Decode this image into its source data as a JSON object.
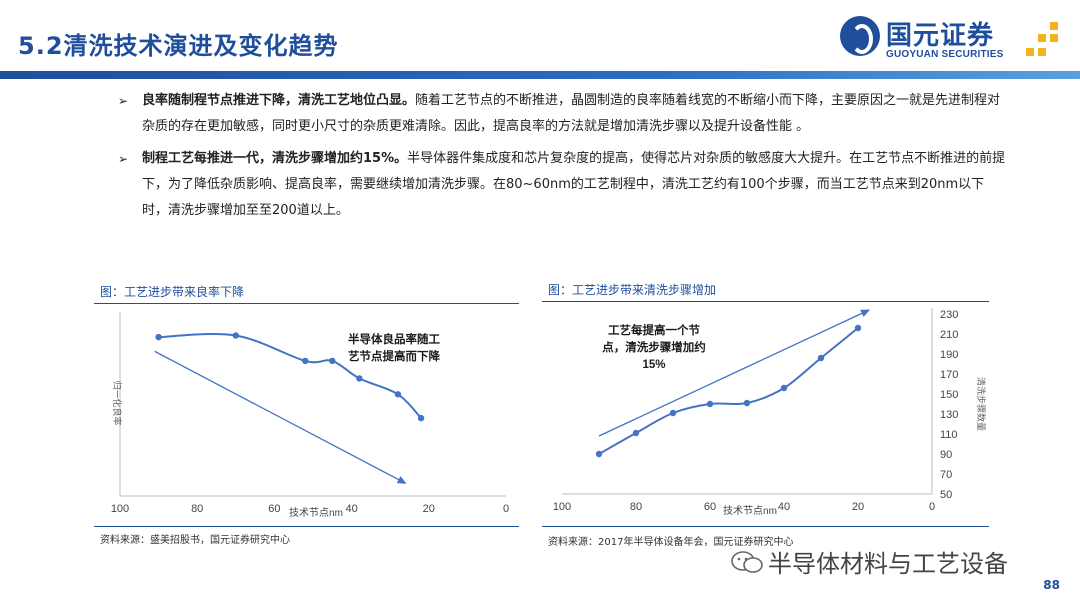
{
  "header": {
    "title": "5.2清洗技术演进及变化趋势",
    "logo_cn": "国元证券",
    "logo_en": "GUOYUAN SECURITIES"
  },
  "bullets": [
    {
      "lead": "良率随制程节点推进下降，清洗工艺地位凸显。",
      "text": "随着工艺节点的不断推进，晶圆制造的良率随着线宽的不断缩小而下降，主要原因之一就是先进制程对杂质的存在更加敏感，同时更小尺寸的杂质更难清除。因此，提高良率的方法就是增加清洗步骤以及提升设备性能 。"
    },
    {
      "lead": "制程工艺每推进一代，清洗步骤增加约15%。",
      "text": "半导体器件集成度和芯片复杂度的提高，使得芯片对杂质的敏感度大大提升。在工艺节点不断推进的前提下，为了降低杂质影响、提高良率，需要继续增加清洗步骤。在80~60nm的工艺制程中，清洗工艺约有100个步骤，而当工艺节点来到20nm以下时，清洗步骤增加至至200道以上。"
    }
  ],
  "figures": [
    {
      "title": "图：工艺进步带来良率下降",
      "source": "资料来源：盛美招股书，国元证券研究中心"
    },
    {
      "title": "图：工艺进步带来清洗步骤增加",
      "source": "资料来源：2017年半导体设备年会，国元证券研究中心"
    }
  ],
  "chart_data": [
    {
      "type": "line",
      "title": "工艺进步带来良率下降",
      "xlabel": "技术节点nm",
      "ylabel": "归一化良率",
      "xlim": [
        100,
        0
      ],
      "xticks": [
        100,
        80,
        60,
        40,
        20,
        0
      ],
      "y_tick_labels": false,
      "ylim": [
        0,
        1.12
      ],
      "annotation": "半导体良品率随工艺节点提高而下降",
      "annotation_lines": [
        "半导体良品率随工",
        "艺节点提高而下降"
      ],
      "series": [
        {
          "x": [
            90,
            70,
            52,
            45,
            38,
            28,
            22
          ],
          "y": [
            1.0,
            1.01,
            0.85,
            0.85,
            0.74,
            0.64,
            0.49
          ]
        }
      ],
      "trend_arrow": {
        "from": [
          91,
          0.91
        ],
        "to": [
          26,
          0.08
        ]
      },
      "colors": {
        "line": "#4472c4",
        "marker": "#4472c4"
      }
    },
    {
      "type": "line",
      "title": "工艺进步带来清洗步骤增加",
      "xlabel": "技术节点nm",
      "ylabel": "清洗步骤数量",
      "xlim": [
        100,
        0
      ],
      "xticks": [
        100,
        80,
        60,
        40,
        20,
        0
      ],
      "ylim": [
        50,
        230
      ],
      "yticks": [
        50,
        70,
        90,
        110,
        130,
        150,
        170,
        190,
        210,
        230
      ],
      "y_axis_side": "right",
      "annotation": "工艺每提高一个节点，清洗步骤增加约15%",
      "annotation_lines": [
        "工艺每提高一个节",
        "点，清洗步骤增加约",
        "15%"
      ],
      "series": [
        {
          "x": [
            90,
            80,
            70,
            60,
            50,
            40,
            30,
            20
          ],
          "y": [
            90,
            111,
            131,
            140,
            141,
            156,
            186,
            216
          ]
        }
      ],
      "trend_arrow": {
        "from": [
          90,
          108
        ],
        "to": [
          17,
          234
        ]
      },
      "colors": {
        "line": "#4472c4",
        "marker": "#4472c4"
      }
    }
  ],
  "watermark": "半导体材料与工艺设备",
  "page_number": "88"
}
